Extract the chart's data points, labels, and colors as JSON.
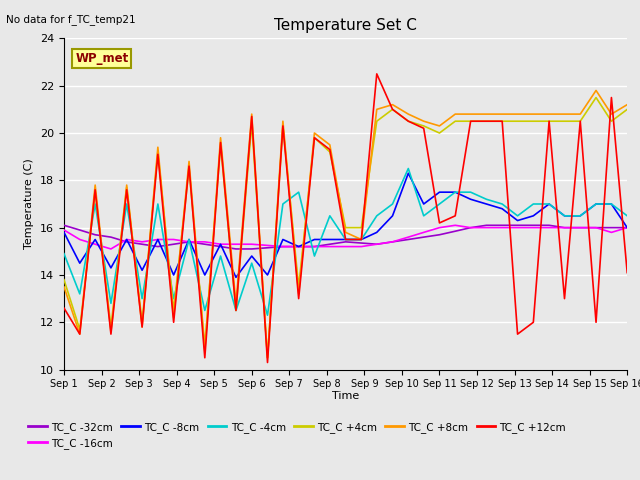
{
  "title": "Temperature Set C",
  "top_left_text": "No data for f_TC_temp21",
  "xlabel": "Time",
  "ylabel": "Temperature (C)",
  "ylim": [
    10,
    24
  ],
  "xlim": [
    0,
    15
  ],
  "xtick_labels": [
    "Sep 1",
    "Sep 2",
    "Sep 3",
    "Sep 4",
    "Sep 5",
    "Sep 6",
    "Sep 7",
    "Sep 8",
    "Sep 9",
    "Sep 10",
    "Sep 11",
    "Sep 12",
    "Sep 13",
    "Sep 14",
    "Sep 15",
    "Sep 16"
  ],
  "ytick_values": [
    10,
    12,
    14,
    16,
    18,
    20,
    22,
    24
  ],
  "bg_color": "#e8e8e8",
  "grid_color": "#ffffff",
  "legend_entries": [
    "TC_C -32cm",
    "TC_C -16cm",
    "TC_C -8cm",
    "TC_C -4cm",
    "TC_C +4cm",
    "TC_C +8cm",
    "TC_C +12cm"
  ],
  "line_colors": {
    "TC_C -32cm": "#9900cc",
    "TC_C -16cm": "#ff00ff",
    "TC_C -8cm": "#0000ff",
    "TC_C -4cm": "#00cccc",
    "TC_C +4cm": "#cccc00",
    "TC_C +8cm": "#ff9900",
    "TC_C +12cm": "#ff0000"
  },
  "series": {
    "TC_C -32cm": {
      "x": [
        0,
        0.42,
        0.83,
        1.25,
        1.67,
        2.08,
        2.5,
        2.92,
        3.33,
        3.75,
        4.17,
        4.58,
        5.0,
        5.42,
        5.83,
        6.25,
        6.67,
        7.08,
        7.5,
        7.92,
        8.33,
        8.75,
        9.17,
        9.58,
        10.0,
        10.42,
        10.83,
        11.25,
        11.67,
        12.08,
        12.5,
        12.92,
        13.33,
        13.75,
        14.17,
        14.58,
        15.0
      ],
      "y": [
        16.1,
        15.9,
        15.7,
        15.6,
        15.4,
        15.3,
        15.2,
        15.3,
        15.4,
        15.3,
        15.2,
        15.1,
        15.1,
        15.15,
        15.2,
        15.2,
        15.2,
        15.3,
        15.4,
        15.35,
        15.3,
        15.4,
        15.5,
        15.6,
        15.7,
        15.85,
        16.0,
        16.1,
        16.1,
        16.1,
        16.1,
        16.1,
        16.0,
        16.0,
        16.0,
        16.0,
        16.0
      ]
    },
    "TC_C -16cm": {
      "x": [
        0,
        0.42,
        0.83,
        1.25,
        1.67,
        2.08,
        2.5,
        2.92,
        3.33,
        3.75,
        4.17,
        4.58,
        5.0,
        5.42,
        5.83,
        6.25,
        6.67,
        7.08,
        7.5,
        7.92,
        8.33,
        8.75,
        9.17,
        9.58,
        10.0,
        10.42,
        10.83,
        11.25,
        11.67,
        12.08,
        12.5,
        12.92,
        13.33,
        13.75,
        14.17,
        14.58,
        15.0
      ],
      "y": [
        15.9,
        15.5,
        15.3,
        15.1,
        15.5,
        15.4,
        15.5,
        15.5,
        15.4,
        15.4,
        15.3,
        15.3,
        15.3,
        15.25,
        15.2,
        15.2,
        15.2,
        15.2,
        15.2,
        15.2,
        15.3,
        15.4,
        15.6,
        15.8,
        16.0,
        16.1,
        16.0,
        16.0,
        16.0,
        16.0,
        16.0,
        16.0,
        16.0,
        16.0,
        16.0,
        15.8,
        16.0
      ]
    },
    "TC_C -8cm": {
      "x": [
        0,
        0.42,
        0.83,
        1.25,
        1.67,
        2.08,
        2.5,
        2.92,
        3.33,
        3.75,
        4.17,
        4.58,
        5.0,
        5.42,
        5.83,
        6.25,
        6.67,
        7.08,
        7.5,
        7.92,
        8.33,
        8.75,
        9.17,
        9.58,
        10.0,
        10.42,
        10.83,
        11.25,
        11.67,
        12.08,
        12.5,
        12.92,
        13.33,
        13.75,
        14.17,
        14.58,
        15.0
      ],
      "y": [
        15.8,
        14.5,
        15.5,
        14.3,
        15.5,
        14.2,
        15.5,
        14.0,
        15.5,
        14.0,
        15.3,
        13.9,
        14.8,
        14.0,
        15.5,
        15.2,
        15.5,
        15.5,
        15.5,
        15.5,
        15.8,
        16.5,
        18.3,
        17.0,
        17.5,
        17.5,
        17.2,
        17.0,
        16.8,
        16.3,
        16.5,
        17.0,
        16.5,
        16.5,
        17.0,
        17.0,
        16.0
      ]
    },
    "TC_C -4cm": {
      "x": [
        0,
        0.42,
        0.83,
        1.25,
        1.67,
        2.08,
        2.5,
        2.92,
        3.33,
        3.75,
        4.17,
        4.58,
        5.0,
        5.42,
        5.83,
        6.25,
        6.67,
        7.08,
        7.5,
        7.92,
        8.33,
        8.75,
        9.17,
        9.58,
        10.0,
        10.42,
        10.83,
        11.25,
        11.67,
        12.08,
        12.5,
        12.92,
        13.33,
        13.75,
        14.17,
        14.58,
        15.0
      ],
      "y": [
        14.9,
        13.2,
        17.0,
        12.8,
        17.0,
        13.0,
        17.0,
        13.0,
        15.5,
        12.5,
        14.8,
        12.5,
        14.5,
        12.3,
        17.0,
        17.5,
        14.8,
        16.5,
        15.5,
        15.5,
        16.5,
        17.0,
        18.5,
        16.5,
        17.0,
        17.5,
        17.5,
        17.2,
        17.0,
        16.5,
        17.0,
        17.0,
        16.5,
        16.5,
        17.0,
        17.0,
        16.5
      ]
    },
    "TC_C +4cm": {
      "x": [
        0,
        0.42,
        0.83,
        1.25,
        1.67,
        2.08,
        2.5,
        2.92,
        3.33,
        3.75,
        4.17,
        4.58,
        5.0,
        5.42,
        5.83,
        6.25,
        6.67,
        7.08,
        7.5,
        7.92,
        8.33,
        8.75,
        9.17,
        9.58,
        10.0,
        10.42,
        10.83,
        11.25,
        11.67,
        12.08,
        12.5,
        12.92,
        13.33,
        13.75,
        14.17,
        14.58,
        15.0
      ],
      "y": [
        13.8,
        11.7,
        17.5,
        11.8,
        17.7,
        12.0,
        19.2,
        12.5,
        18.5,
        11.0,
        19.5,
        12.5,
        20.4,
        10.5,
        20.3,
        13.5,
        19.8,
        19.2,
        16.0,
        16.0,
        20.5,
        21.0,
        20.5,
        20.3,
        20.0,
        20.5,
        20.5,
        20.5,
        20.5,
        20.5,
        20.5,
        20.5,
        20.5,
        20.5,
        21.5,
        20.5,
        21.0
      ]
    },
    "TC_C +8cm": {
      "x": [
        0,
        0.42,
        0.83,
        1.25,
        1.67,
        2.08,
        2.5,
        2.92,
        3.33,
        3.75,
        4.17,
        4.58,
        5.0,
        5.42,
        5.83,
        6.25,
        6.67,
        7.08,
        7.5,
        7.92,
        8.33,
        8.75,
        9.17,
        9.58,
        10.0,
        10.42,
        10.83,
        11.25,
        11.67,
        12.08,
        12.5,
        12.92,
        13.33,
        13.75,
        14.17,
        14.58,
        15.0
      ],
      "y": [
        13.5,
        11.5,
        17.8,
        11.6,
        17.8,
        11.8,
        19.4,
        12.2,
        18.8,
        10.8,
        19.8,
        12.8,
        20.8,
        10.5,
        20.5,
        13.2,
        20.0,
        19.5,
        15.8,
        15.5,
        21.0,
        21.2,
        20.8,
        20.5,
        20.3,
        20.8,
        20.8,
        20.8,
        20.8,
        20.8,
        20.8,
        20.8,
        20.8,
        20.8,
        21.8,
        20.8,
        21.2
      ]
    },
    "TC_C +12cm": {
      "x": [
        0,
        0.42,
        0.83,
        1.25,
        1.67,
        2.08,
        2.5,
        2.92,
        3.33,
        3.75,
        4.17,
        4.58,
        5.0,
        5.42,
        5.83,
        6.25,
        6.67,
        7.08,
        7.5,
        7.92,
        8.33,
        8.75,
        9.17,
        9.58,
        10.0,
        10.42,
        10.83,
        11.25,
        11.67,
        12.08,
        12.5,
        12.92,
        13.33,
        13.75,
        14.17,
        14.58,
        15.0
      ],
      "y": [
        12.6,
        11.5,
        17.6,
        11.5,
        17.6,
        11.8,
        19.1,
        12.0,
        18.6,
        10.5,
        19.6,
        12.5,
        20.7,
        10.3,
        20.3,
        13.0,
        19.8,
        19.3,
        15.5,
        15.5,
        22.5,
        21.0,
        20.5,
        20.2,
        16.2,
        16.5,
        20.5,
        20.5,
        20.5,
        11.5,
        12.0,
        20.5,
        13.0,
        20.5,
        12.0,
        21.5,
        14.1
      ]
    }
  }
}
